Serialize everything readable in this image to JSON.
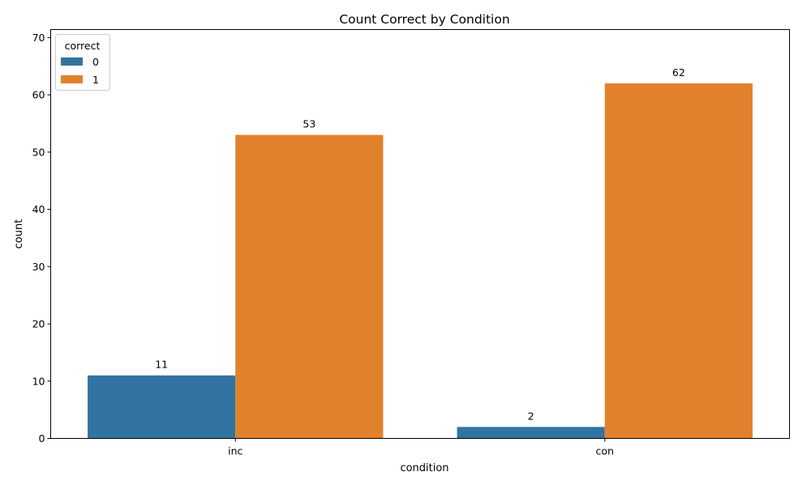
{
  "chart_data": {
    "type": "bar",
    "title": "Count Correct by Condition",
    "xlabel": "condition",
    "ylabel": "count",
    "categories": [
      "inc",
      "con"
    ],
    "series": [
      {
        "name": "0",
        "values": [
          11,
          2
        ],
        "color": "#3274a1"
      },
      {
        "name": "1",
        "values": [
          53,
          62
        ],
        "color": "#e1812c"
      }
    ],
    "ylim": [
      0,
      71.4
    ],
    "yticks": [
      0,
      10,
      20,
      30,
      40,
      50,
      60,
      70
    ],
    "grid": false,
    "legend": {
      "title": "correct",
      "placement": "top-left"
    }
  }
}
